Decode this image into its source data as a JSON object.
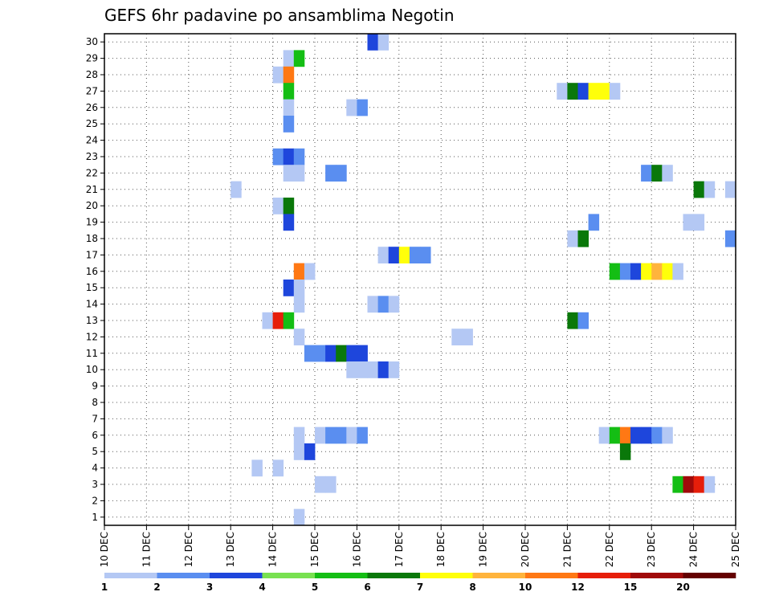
{
  "chart_data": {
    "type": "heatmap",
    "title": "GEFS 6hr padavine po ansamblima Negotin",
    "xlabel": "",
    "ylabel": "",
    "x_tick_labels": [
      "10 DEC",
      "11 DEC",
      "12 DEC",
      "13 DEC",
      "14 DEC",
      "15 DEC",
      "16 DEC",
      "17 DEC",
      "18 DEC",
      "19 DEC",
      "20 DEC",
      "21 DEC",
      "22 DEC",
      "23 DEC",
      "24 DEC",
      "25 DEC"
    ],
    "xlim": [
      0,
      60
    ],
    "x_unit": "6-hour steps from 10 DEC 00Z",
    "y_tick_labels": [
      1,
      2,
      3,
      4,
      5,
      6,
      7,
      8,
      9,
      10,
      11,
      12,
      13,
      14,
      15,
      16,
      17,
      18,
      19,
      20,
      21,
      22,
      23,
      24,
      25,
      26,
      27,
      28,
      29,
      30
    ],
    "ylim": [
      0.5,
      30.5
    ],
    "grid": true,
    "colorbar": {
      "placement": "bottom",
      "labels": [
        "1",
        "2",
        "3",
        "4",
        "5",
        "6",
        "7",
        "8",
        "10",
        "12",
        "15",
        "20"
      ],
      "colors": [
        "#b4c8f4",
        "#5a8ef0",
        "#1e46dc",
        "#78e150",
        "#14be14",
        "#0a780a",
        "#ffff0a",
        "#ffb43c",
        "#ff7814",
        "#e61e0a",
        "#a00a0a",
        "#640000"
      ]
    },
    "cells": [
      {
        "m": 30,
        "x": 25,
        "v": 3
      },
      {
        "m": 30,
        "x": 26,
        "v": 1
      },
      {
        "m": 29,
        "x": 17,
        "v": 1
      },
      {
        "m": 29,
        "x": 18,
        "v": 5
      },
      {
        "m": 28,
        "x": 16,
        "v": 1
      },
      {
        "m": 28,
        "x": 17,
        "v": 10
      },
      {
        "m": 27,
        "x": 17,
        "v": 5
      },
      {
        "m": 27,
        "x": 43,
        "v": 1
      },
      {
        "m": 27,
        "x": 44,
        "v": 6
      },
      {
        "m": 27,
        "x": 45,
        "v": 3
      },
      {
        "m": 27,
        "x": 46,
        "v": 7
      },
      {
        "m": 27,
        "x": 47,
        "v": 7
      },
      {
        "m": 27,
        "x": 48,
        "v": 1
      },
      {
        "m": 26,
        "x": 17,
        "v": 1
      },
      {
        "m": 26,
        "x": 23,
        "v": 1
      },
      {
        "m": 26,
        "x": 24,
        "v": 2
      },
      {
        "m": 25,
        "x": 17,
        "v": 2
      },
      {
        "m": 23,
        "x": 16,
        "v": 2
      },
      {
        "m": 23,
        "x": 17,
        "v": 3
      },
      {
        "m": 23,
        "x": 18,
        "v": 2
      },
      {
        "m": 22,
        "x": 17,
        "v": 1
      },
      {
        "m": 22,
        "x": 18,
        "v": 1
      },
      {
        "m": 22,
        "x": 21,
        "v": 2
      },
      {
        "m": 22,
        "x": 22,
        "v": 2
      },
      {
        "m": 22,
        "x": 51,
        "v": 2
      },
      {
        "m": 22,
        "x": 52,
        "v": 6
      },
      {
        "m": 22,
        "x": 53,
        "v": 1
      },
      {
        "m": 21,
        "x": 12,
        "v": 1
      },
      {
        "m": 21,
        "x": 56,
        "v": 6
      },
      {
        "m": 21,
        "x": 57,
        "v": 1
      },
      {
        "m": 21,
        "x": 59,
        "v": 1
      },
      {
        "m": 20,
        "x": 16,
        "v": 1
      },
      {
        "m": 20,
        "x": 17,
        "v": 6
      },
      {
        "m": 19,
        "x": 17,
        "v": 3
      },
      {
        "m": 19,
        "x": 46,
        "v": 2
      },
      {
        "m": 19,
        "x": 55,
        "v": 1
      },
      {
        "m": 19,
        "x": 56,
        "v": 1
      },
      {
        "m": 18,
        "x": 44,
        "v": 1
      },
      {
        "m": 18,
        "x": 45,
        "v": 6
      },
      {
        "m": 18,
        "x": 59,
        "v": 2
      },
      {
        "m": 17,
        "x": 26,
        "v": 1
      },
      {
        "m": 17,
        "x": 27,
        "v": 3
      },
      {
        "m": 17,
        "x": 28,
        "v": 7
      },
      {
        "m": 17,
        "x": 29,
        "v": 2
      },
      {
        "m": 17,
        "x": 30,
        "v": 2
      },
      {
        "m": 16,
        "x": 18,
        "v": 10
      },
      {
        "m": 16,
        "x": 19,
        "v": 1
      },
      {
        "m": 16,
        "x": 48,
        "v": 5
      },
      {
        "m": 16,
        "x": 49,
        "v": 2
      },
      {
        "m": 16,
        "x": 50,
        "v": 3
      },
      {
        "m": 16,
        "x": 51,
        "v": 7
      },
      {
        "m": 16,
        "x": 52,
        "v": 8
      },
      {
        "m": 16,
        "x": 53,
        "v": 7
      },
      {
        "m": 16,
        "x": 54,
        "v": 1
      },
      {
        "m": 15,
        "x": 17,
        "v": 3
      },
      {
        "m": 15,
        "x": 18,
        "v": 1
      },
      {
        "m": 14,
        "x": 18,
        "v": 1
      },
      {
        "m": 14,
        "x": 25,
        "v": 1
      },
      {
        "m": 14,
        "x": 26,
        "v": 2
      },
      {
        "m": 14,
        "x": 27,
        "v": 1
      },
      {
        "m": 13,
        "x": 15,
        "v": 1
      },
      {
        "m": 13,
        "x": 16,
        "v": 12
      },
      {
        "m": 13,
        "x": 17,
        "v": 5
      },
      {
        "m": 13,
        "x": 44,
        "v": 6
      },
      {
        "m": 13,
        "x": 45,
        "v": 2
      },
      {
        "m": 12,
        "x": 18,
        "v": 1
      },
      {
        "m": 12,
        "x": 33,
        "v": 1
      },
      {
        "m": 12,
        "x": 34,
        "v": 1
      },
      {
        "m": 11,
        "x": 19,
        "v": 2
      },
      {
        "m": 11,
        "x": 20,
        "v": 2
      },
      {
        "m": 11,
        "x": 21,
        "v": 3
      },
      {
        "m": 11,
        "x": 22,
        "v": 6
      },
      {
        "m": 11,
        "x": 23,
        "v": 3
      },
      {
        "m": 11,
        "x": 24,
        "v": 3
      },
      {
        "m": 10,
        "x": 23,
        "v": 1
      },
      {
        "m": 10,
        "x": 24,
        "v": 1
      },
      {
        "m": 10,
        "x": 25,
        "v": 1
      },
      {
        "m": 10,
        "x": 26,
        "v": 3
      },
      {
        "m": 10,
        "x": 27,
        "v": 1
      },
      {
        "m": 6,
        "x": 18,
        "v": 1
      },
      {
        "m": 6,
        "x": 20,
        "v": 1
      },
      {
        "m": 6,
        "x": 21,
        "v": 2
      },
      {
        "m": 6,
        "x": 22,
        "v": 2
      },
      {
        "m": 6,
        "x": 23,
        "v": 1
      },
      {
        "m": 6,
        "x": 24,
        "v": 2
      },
      {
        "m": 6,
        "x": 47,
        "v": 1
      },
      {
        "m": 6,
        "x": 48,
        "v": 5
      },
      {
        "m": 6,
        "x": 49,
        "v": 10
      },
      {
        "m": 6,
        "x": 50,
        "v": 3
      },
      {
        "m": 6,
        "x": 51,
        "v": 3
      },
      {
        "m": 6,
        "x": 52,
        "v": 2
      },
      {
        "m": 6,
        "x": 53,
        "v": 1
      },
      {
        "m": 5,
        "x": 18,
        "v": 1
      },
      {
        "m": 5,
        "x": 19,
        "v": 3
      },
      {
        "m": 5,
        "x": 49,
        "v": 6
      },
      {
        "m": 4,
        "x": 14,
        "v": 1
      },
      {
        "m": 4,
        "x": 16,
        "v": 1
      },
      {
        "m": 3,
        "x": 20,
        "v": 1
      },
      {
        "m": 3,
        "x": 21,
        "v": 1
      },
      {
        "m": 3,
        "x": 54,
        "v": 5
      },
      {
        "m": 3,
        "x": 55,
        "v": 15
      },
      {
        "m": 3,
        "x": 56,
        "v": 12
      },
      {
        "m": 3,
        "x": 57,
        "v": 1
      },
      {
        "m": 1,
        "x": 18,
        "v": 1
      }
    ]
  }
}
